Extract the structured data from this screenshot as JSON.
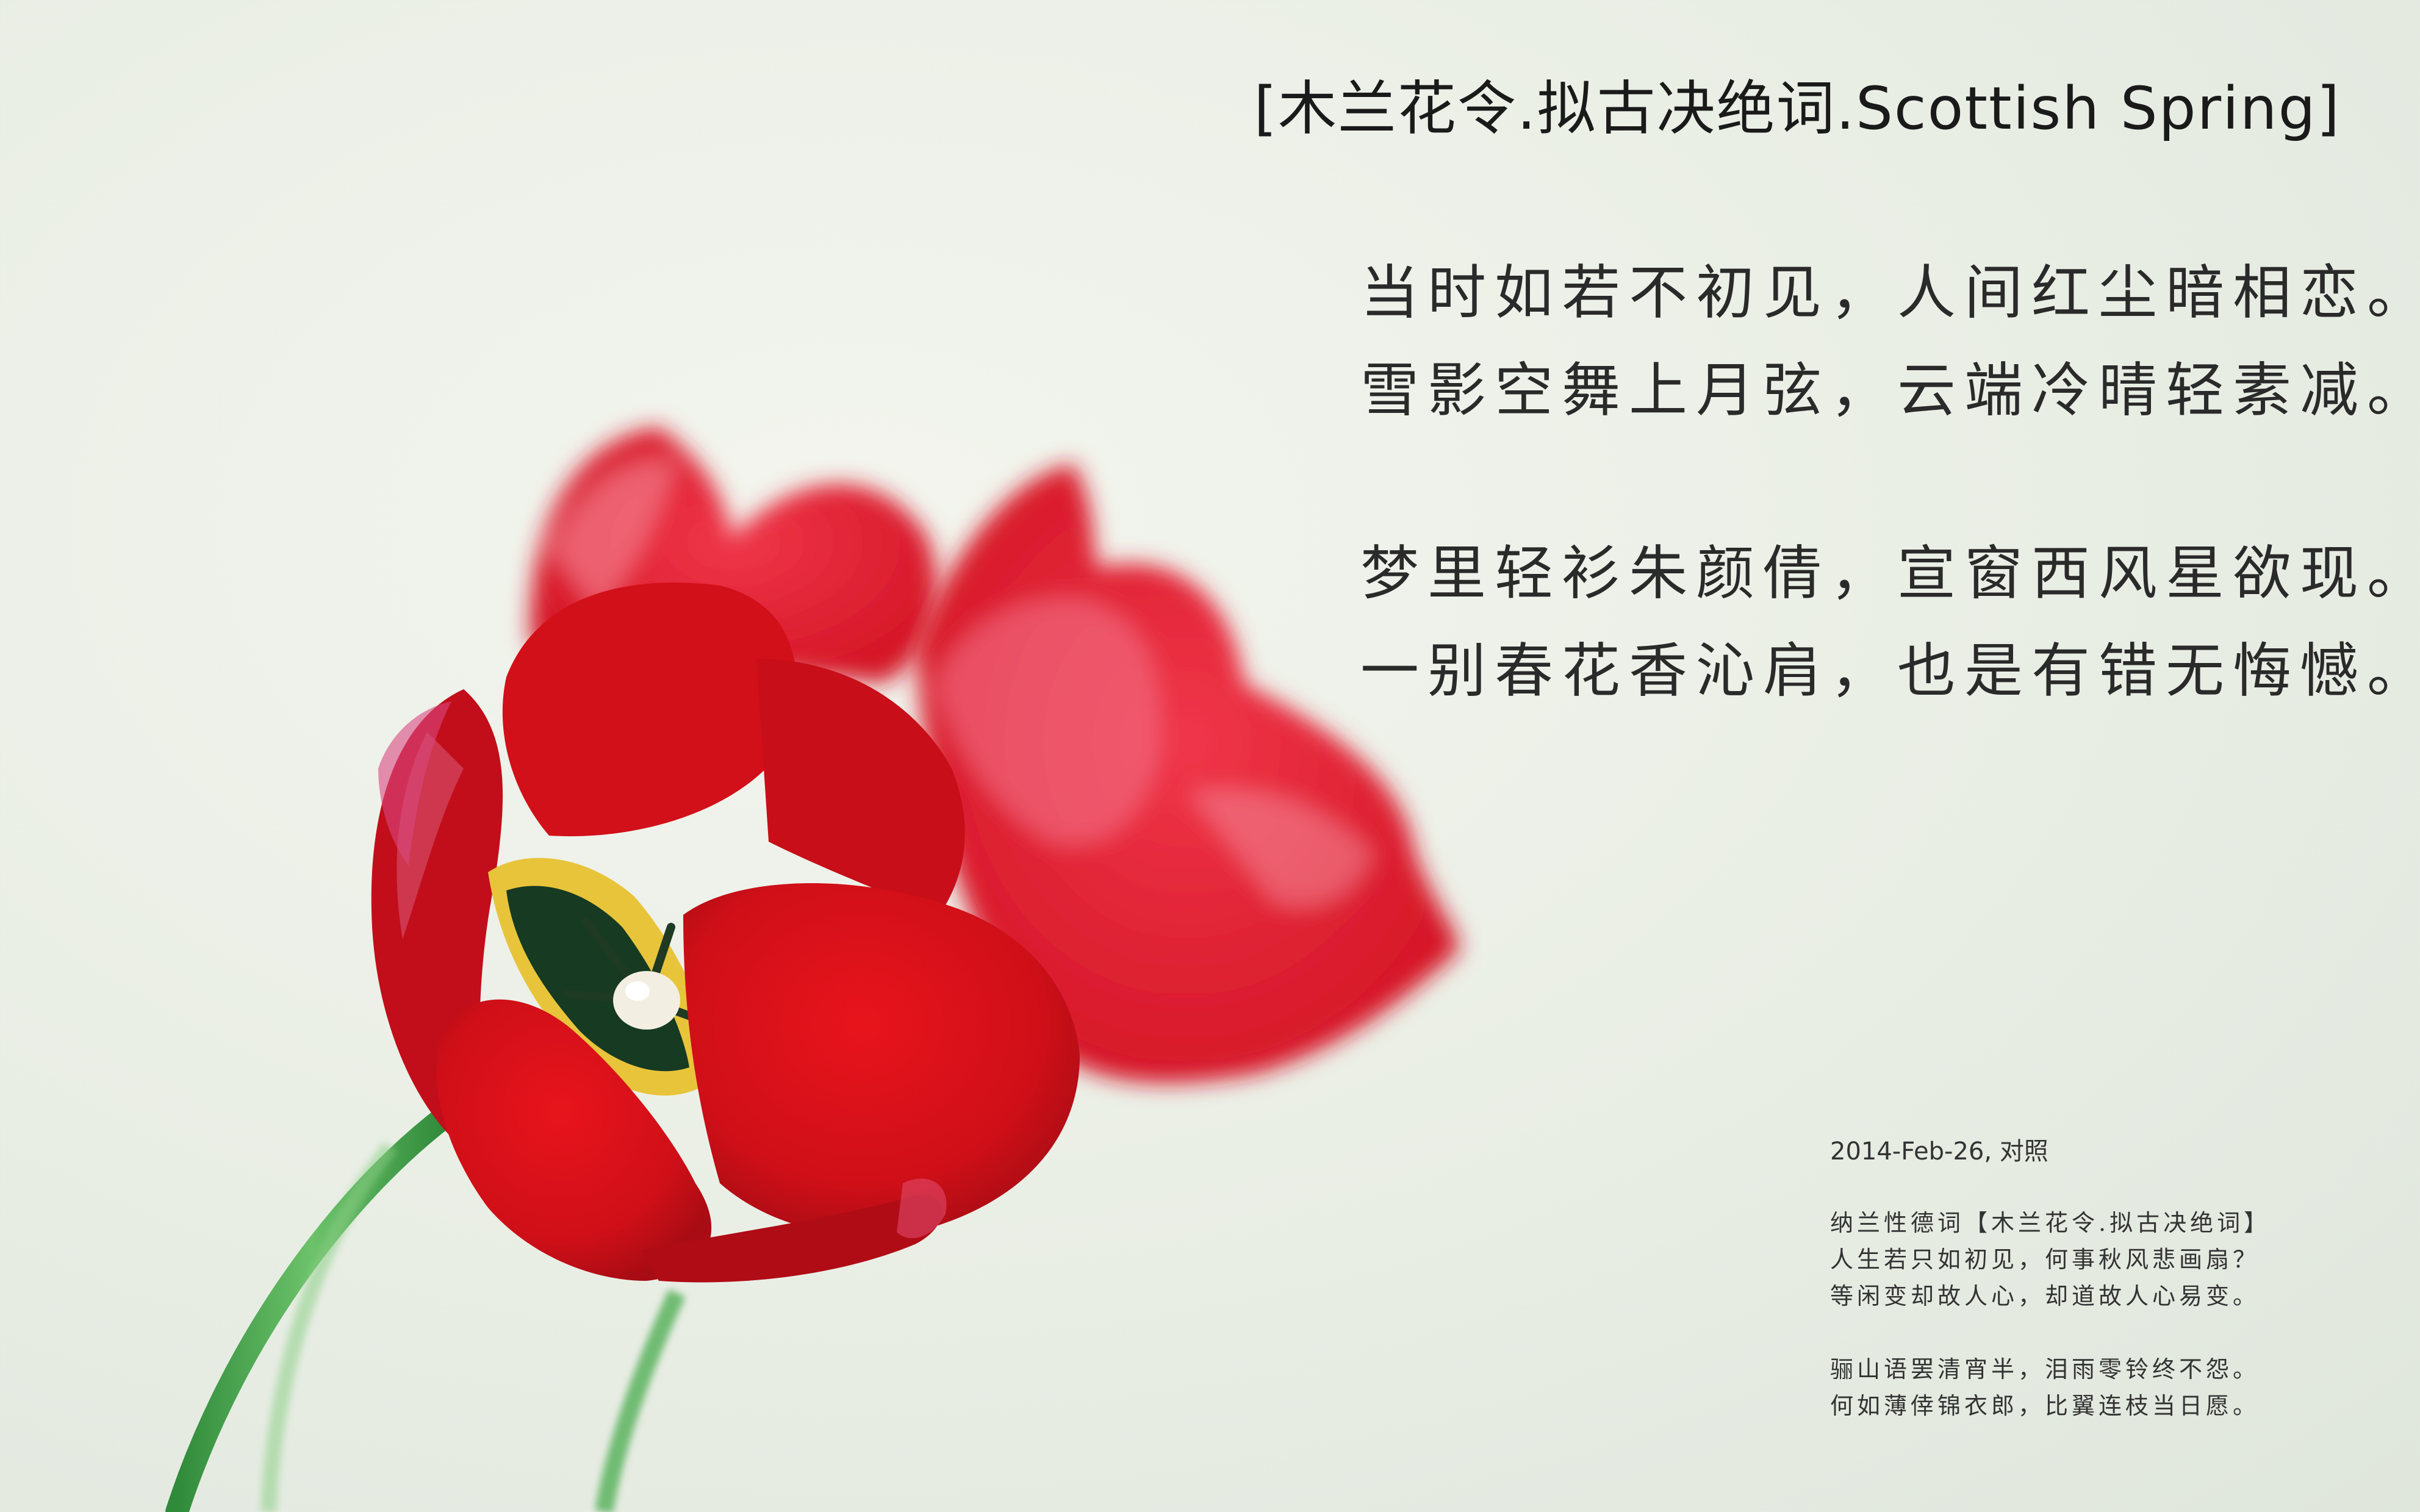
{
  "title": "[木兰花令.拟古决绝词.Scottish Spring]",
  "poem": {
    "stanza1": [
      "当时如若不初见，人间红尘暗相恋。",
      "雪影空舞上月弦，云端冷晴轻素减。"
    ],
    "stanza2": [
      "梦里轻衫朱颜倩，宣窗西风星欲现。",
      "一别春花香沁肩，也是有错无悔憾。"
    ]
  },
  "meta": "2014-Feb-26, 对照",
  "reference": {
    "heading": "纳兰性德词【木兰花令.拟古决绝词】",
    "stanza1": [
      "人生若只如初见，何事秋风悲画扇？",
      "等闲变却故人心，却道故人心易变。"
    ],
    "stanza2": [
      "骊山语罢清宵半，泪雨零铃终不怨。",
      "何如薄倖锦衣郎，比翼连枝当日愿。"
    ]
  },
  "colors": {
    "background": "#eaefe6",
    "petal": "#d8121a",
    "stem": "#4aa64a"
  }
}
